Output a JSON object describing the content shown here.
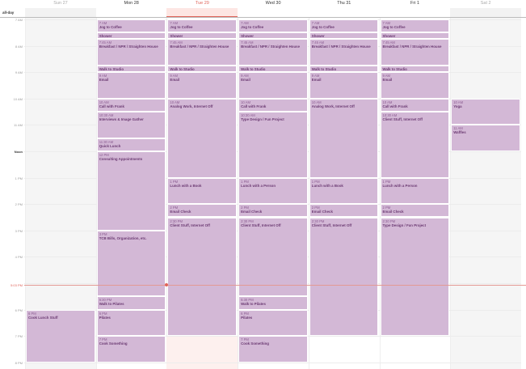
{
  "allday_label": "all-day",
  "days": [
    {
      "label": "Sun 27",
      "weekend": true,
      "events": [
        {
          "start": 18,
          "end": 20,
          "time": "6 PM",
          "title": "Cook Lunch Stuff"
        }
      ]
    },
    {
      "label": "Mon 28",
      "events": [
        {
          "start": 7,
          "end": 7.5,
          "time": "7 AM",
          "title": "Jog to Coffee"
        },
        {
          "start": 7.5,
          "end": 7.75,
          "time": "",
          "title": "Shower"
        },
        {
          "start": 7.75,
          "end": 8.75,
          "time": "7:45 AM",
          "title": "Breakfast / NPR / Straighten House"
        },
        {
          "start": 8.75,
          "end": 9,
          "time": "",
          "title": "Walk to Studio"
        },
        {
          "start": 9,
          "end": 10,
          "time": "9 AM",
          "title": "Email"
        },
        {
          "start": 10,
          "end": 10.5,
          "time": "10 AM",
          "title": "Call with Frank"
        },
        {
          "start": 10.5,
          "end": 11.5,
          "time": "10:30 AM",
          "title": "Interviews & Image Gather"
        },
        {
          "start": 11.5,
          "end": 12,
          "time": "11:30 AM",
          "title": "Quick Lunch"
        },
        {
          "start": 12,
          "end": 15,
          "time": "12 PM",
          "title": "Consulting Appointments"
        },
        {
          "start": 15,
          "end": 17.5,
          "time": "3 PM",
          "title": "TCB Bills, Organization, etc."
        },
        {
          "start": 17.5,
          "end": 18,
          "time": "5:30 PM",
          "title": "Walk to Pilates"
        },
        {
          "start": 18,
          "end": 19,
          "time": "6 PM",
          "title": "Pilates"
        },
        {
          "start": 19,
          "end": 20,
          "time": "7 PM",
          "title": "Cook Something"
        }
      ]
    },
    {
      "label": "Tue 29",
      "today": true,
      "events": [
        {
          "start": 7,
          "end": 7.5,
          "time": "7 AM",
          "title": "Jog to Coffee"
        },
        {
          "start": 7.5,
          "end": 7.75,
          "time": "",
          "title": "Shower"
        },
        {
          "start": 7.75,
          "end": 8.75,
          "time": "7:45 AM",
          "title": "Breakfast / NPR / Straighten House"
        },
        {
          "start": 8.75,
          "end": 9,
          "time": "",
          "title": "Walk to Studio"
        },
        {
          "start": 9,
          "end": 10,
          "time": "9 AM",
          "title": "Email"
        },
        {
          "start": 10,
          "end": 13,
          "time": "10 AM",
          "title": "Analog Work, Internet Off"
        },
        {
          "start": 13,
          "end": 14,
          "time": "1 PM",
          "title": "Lunch with a Book"
        },
        {
          "start": 14,
          "end": 14.5,
          "time": "2 PM",
          "title": "Email Check"
        },
        {
          "start": 14.5,
          "end": 19,
          "time": "2:30 PM",
          "title": "Client Stuff, Internet Off"
        }
      ]
    },
    {
      "label": "Wed 30",
      "events": [
        {
          "start": 7,
          "end": 7.5,
          "time": "7 AM",
          "title": "Jog to Coffee"
        },
        {
          "start": 7.5,
          "end": 7.75,
          "time": "",
          "title": "Shower"
        },
        {
          "start": 7.75,
          "end": 8.75,
          "time": "7:45 AM",
          "title": "Breakfast / NPR / Straighten House"
        },
        {
          "start": 8.75,
          "end": 9,
          "time": "",
          "title": "Walk to Studio"
        },
        {
          "start": 9,
          "end": 10,
          "time": "9 AM",
          "title": "Email"
        },
        {
          "start": 10,
          "end": 10.5,
          "time": "10 AM",
          "title": "Call with Frank"
        },
        {
          "start": 10.5,
          "end": 13,
          "time": "10:30 AM",
          "title": "Type Design / Fun Project"
        },
        {
          "start": 13,
          "end": 14,
          "time": "1 PM",
          "title": "Lunch with a Person"
        },
        {
          "start": 14,
          "end": 14.5,
          "time": "2 PM",
          "title": "Email Check"
        },
        {
          "start": 14.5,
          "end": 17.5,
          "time": "2:30 PM",
          "title": "Client Stuff, Internet Off"
        },
        {
          "start": 17.5,
          "end": 18,
          "time": "5:30 PM",
          "title": "Walk to Pilates"
        },
        {
          "start": 18,
          "end": 19,
          "time": "6 PM",
          "title": "Pilates"
        },
        {
          "start": 19,
          "end": 20,
          "time": "7 PM",
          "title": "Cook Something"
        }
      ]
    },
    {
      "label": "Thu 31",
      "events": [
        {
          "start": 7,
          "end": 7.5,
          "time": "7 AM",
          "title": "Jog to Coffee"
        },
        {
          "start": 7.5,
          "end": 7.75,
          "time": "",
          "title": "Shower"
        },
        {
          "start": 7.75,
          "end": 8.75,
          "time": "7:45 AM",
          "title": "Breakfast / NPR / Straighten House"
        },
        {
          "start": 8.75,
          "end": 9,
          "time": "",
          "title": "Walk to Studio"
        },
        {
          "start": 9,
          "end": 10,
          "time": "9 AM",
          "title": "Email"
        },
        {
          "start": 10,
          "end": 13,
          "time": "10 AM",
          "title": "Analog Work, Internet Off"
        },
        {
          "start": 13,
          "end": 14,
          "time": "1 PM",
          "title": "Lunch with a Book"
        },
        {
          "start": 14,
          "end": 14.5,
          "time": "2 PM",
          "title": "Email Check"
        },
        {
          "start": 14.5,
          "end": 19,
          "time": "2:30 PM",
          "title": "Client Stuff, Internet Off"
        }
      ]
    },
    {
      "label": "Fri 1",
      "events": [
        {
          "start": 7,
          "end": 7.5,
          "time": "7 AM",
          "title": "Jog to Coffee"
        },
        {
          "start": 7.5,
          "end": 7.75,
          "time": "",
          "title": "Shower"
        },
        {
          "start": 7.75,
          "end": 8.75,
          "time": "7:45 AM",
          "title": "Breakfast / NPR / Straighten House"
        },
        {
          "start": 8.75,
          "end": 9,
          "time": "",
          "title": "Walk to Studio"
        },
        {
          "start": 9,
          "end": 10,
          "time": "9 AM",
          "title": "Email"
        },
        {
          "start": 10,
          "end": 10.5,
          "time": "10 AM",
          "title": "Call with Frank"
        },
        {
          "start": 10.5,
          "end": 13,
          "time": "10:30 AM",
          "title": "Client Stuff, Internet Off"
        },
        {
          "start": 13,
          "end": 14,
          "time": "1 PM",
          "title": "Lunch with a Person"
        },
        {
          "start": 14,
          "end": 14.5,
          "time": "2 PM",
          "title": "Email Check"
        },
        {
          "start": 14.5,
          "end": 19,
          "time": "2:30 PM",
          "title": "Type Design / Fun Project"
        }
      ]
    },
    {
      "label": "Sat 2",
      "weekend": true,
      "events": [
        {
          "start": 10,
          "end": 11,
          "time": "10 AM",
          "title": "Yoga"
        },
        {
          "start": 11,
          "end": 12,
          "time": "11 AM",
          "title": "Waffles"
        }
      ]
    }
  ],
  "hours": [
    "7 AM",
    "8 AM",
    "9 AM",
    "10 AM",
    "11 AM",
    "Noon",
    "1 PM",
    "2 PM",
    "3 PM",
    "4 PM",
    "5 PM",
    "6 PM",
    "7 PM",
    "8 PM"
  ],
  "current_time": {
    "label": "5:03 PM",
    "hour": 17.05
  },
  "colors": {
    "event": "#d3b8d6",
    "event_text": "#6b3a72",
    "today": "#e0645a"
  }
}
